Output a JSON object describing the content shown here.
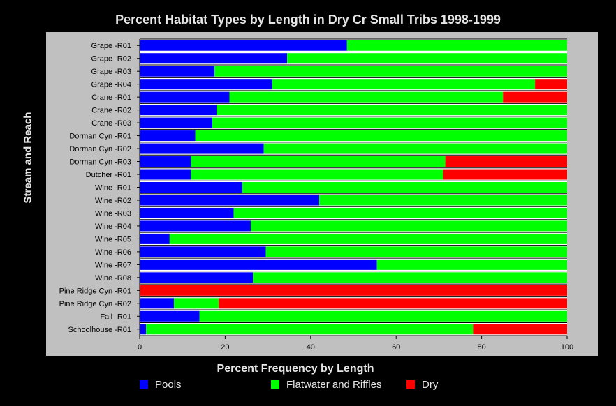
{
  "chart_data": {
    "type": "bar",
    "orientation": "horizontal",
    "stacked": true,
    "title": "Percent Habitat Types by Length in Dry Cr Small Tribs 1998-1999",
    "xlabel": "Percent Frequency by Length",
    "ylabel": "Stream and Reach",
    "xlim": [
      0,
      100
    ],
    "xticks": [
      0,
      20,
      40,
      60,
      80,
      100
    ],
    "grid": true,
    "legend_position": "bottom",
    "categories": [
      "Grape -R01",
      "Grape -R02",
      "Grape -R03",
      "Grape -R04",
      "Crane -R01",
      "Crane -R02",
      "Crane -R03",
      "Dorman Cyn -R01",
      "Dorman Cyn -R02",
      "Dorman Cyn -R03",
      "Dutcher -R01",
      "Wine -R01",
      "Wine -R02",
      "Wine -R03",
      "Wine -R04",
      "Wine -R05",
      "Wine -R06",
      "Wine -R07",
      "Wine -R08",
      "Pine Ridge Cyn -R01",
      "Pine Ridge Cyn -R02",
      "Fall -R01",
      "Schoolhouse -R01"
    ],
    "series": [
      {
        "name": "Pools",
        "color": "#0000ff",
        "values": [
          48.5,
          34.5,
          17.5,
          31,
          21,
          18,
          17,
          13,
          29,
          12,
          12,
          24,
          42,
          22,
          26,
          7,
          29.5,
          55.5,
          26.5,
          0,
          8,
          14,
          1.5
        ]
      },
      {
        "name": "Flatwater and Riffles",
        "color": "#00ff00",
        "values": [
          51.5,
          65.5,
          82.5,
          61.5,
          64,
          82,
          83,
          87,
          71,
          59.5,
          59,
          76,
          58,
          78,
          74,
          93,
          70.5,
          44.5,
          73.5,
          0,
          10.5,
          86,
          76.5
        ]
      },
      {
        "name": "Dry",
        "color": "#ff0000",
        "values": [
          0,
          0,
          0,
          7.5,
          15,
          0,
          0,
          0,
          0,
          28.5,
          29,
          0,
          0,
          0,
          0,
          0,
          0,
          0,
          0,
          100,
          81.5,
          0,
          22
        ]
      }
    ]
  },
  "colors": {
    "background": "#000000",
    "panel": "#c0c0c0",
    "plot_area": "#ffffff",
    "text": "#e6e6e6"
  }
}
